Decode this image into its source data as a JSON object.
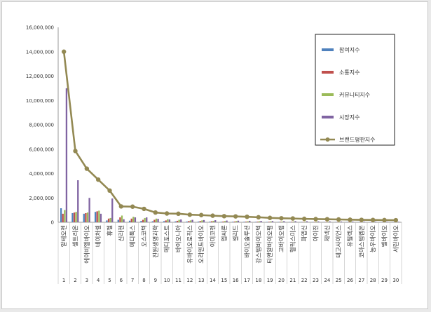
{
  "chart_data": {
    "type": "bar+line",
    "title": "",
    "xlabel": "",
    "ylabel": "",
    "ylim": [
      0,
      16000000
    ],
    "y_ticks": [
      "0",
      "2,000,000",
      "4,000,000",
      "6,000,000",
      "8,000,000",
      "10,000,000",
      "12,000,000",
      "14,000,000",
      "16,000,000"
    ],
    "grid": false,
    "legend_position": "top-right",
    "categories": [
      "1",
      "2",
      "3",
      "4",
      "5",
      "6",
      "7",
      "8",
      "9",
      "10",
      "11",
      "12",
      "13",
      "14",
      "15",
      "16",
      "17",
      "18",
      "19",
      "20",
      "21",
      "22",
      "23",
      "24",
      "25",
      "26",
      "27",
      "28",
      "29",
      "30"
    ],
    "category_names": [
      "알테오젠",
      "셀트리온",
      "에이비엘바이오",
      "네이처셀",
      "휴젤",
      "신라젠",
      "메디톡스",
      "오스코텍",
      "진원생명과학",
      "메디포스트",
      "바이오니아",
      "유바이오로직스",
      "오리엔트바이오",
      "아미코젠",
      "엡씨론",
      "셀리드",
      "바이오솔루션",
      "강스템바이오텍",
      "티앤알바이오팹",
      "고바이오랩",
      "헬릭스미스",
      "파멥신",
      "아이진",
      "제넥신",
      "테고사이언스",
      "유틸렉스",
      "코아스템켐온",
      "농우바이오",
      "벨바이오",
      "서린바이오"
    ],
    "series": [
      {
        "name": "참여지수",
        "color": "#4f81bd",
        "kind": "bar",
        "values": [
          1150000,
          750000,
          700000,
          850000,
          150000,
          200000,
          130000,
          110000,
          80000,
          90000,
          70000,
          60000,
          60000,
          50000,
          40000,
          40000,
          40000,
          35000,
          30000,
          30000,
          25000,
          25000,
          20000,
          20000,
          20000,
          20000,
          15000,
          15000,
          15000,
          15000
        ]
      },
      {
        "name": "소통지수",
        "color": "#c0504d",
        "kind": "bar",
        "values": [
          700000,
          800000,
          750000,
          900000,
          300000,
          400000,
          300000,
          200000,
          200000,
          150000,
          120000,
          100000,
          100000,
          80000,
          60000,
          60000,
          50000,
          50000,
          40000,
          40000,
          40000,
          30000,
          30000,
          30000,
          25000,
          25000,
          20000,
          20000,
          20000,
          15000
        ]
      },
      {
        "name": "커뮤니티지수",
        "color": "#9bbb59",
        "kind": "bar",
        "values": [
          1000000,
          850000,
          800000,
          950000,
          350000,
          550000,
          450000,
          350000,
          300000,
          250000,
          200000,
          150000,
          150000,
          120000,
          100000,
          100000,
          80000,
          80000,
          70000,
          60000,
          60000,
          50000,
          50000,
          40000,
          40000,
          40000,
          30000,
          30000,
          30000,
          30000
        ]
      },
      {
        "name": "시장지수",
        "color": "#8064a2",
        "kind": "bar",
        "values": [
          11000000,
          3450000,
          2000000,
          700000,
          1950000,
          250000,
          400000,
          400000,
          280000,
          230000,
          230000,
          200000,
          180000,
          170000,
          140000,
          130000,
          120000,
          110000,
          100000,
          90000,
          90000,
          80000,
          70000,
          70000,
          60000,
          60000,
          50000,
          50000,
          40000,
          40000
        ]
      },
      {
        "name": "브랜드평판지수",
        "color": "#938953",
        "kind": "line",
        "values": [
          14000000,
          5850000,
          4400000,
          3500000,
          2600000,
          1300000,
          1280000,
          1100000,
          800000,
          720000,
          700000,
          620000,
          590000,
          540000,
          500000,
          480000,
          450000,
          410000,
          360000,
          330000,
          310000,
          280000,
          260000,
          250000,
          230000,
          210000,
          200000,
          190000,
          180000,
          170000
        ]
      }
    ]
  }
}
